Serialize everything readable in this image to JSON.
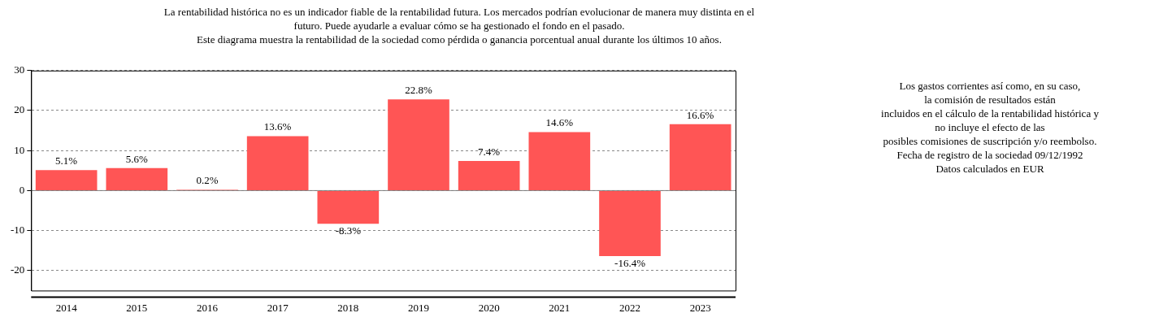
{
  "chart_data": {
    "type": "bar",
    "title": "La rentabilidad histórica no es un indicador fiable de la rentabilidad futura. Los mercados podrían evolucionar de manera muy distinta en el\nfuturo. Puede ayudarle a evaluar cómo se ha gestionado el fondo en el pasado.\nEste diagrama muestra la rentabilidad de la sociedad como pérdida o ganancia porcentual anual durante los últimos 10 años.",
    "categories": [
      "2014",
      "2015",
      "2016",
      "2017",
      "2018",
      "2019",
      "2020",
      "2021",
      "2022",
      "2023"
    ],
    "values": [
      5.1,
      5.6,
      0.2,
      13.6,
      -8.3,
      22.8,
      7.4,
      14.6,
      -16.4,
      16.6
    ],
    "value_labels": [
      "5.1%",
      "5.6%",
      "0.2%",
      "13.6%",
      "-8.3%",
      "22.8%",
      "7.4%",
      "14.6%",
      "-16.4%",
      "16.6%"
    ],
    "color": "#ff5555",
    "ylim": [
      -25,
      30
    ],
    "yticks": [
      -20,
      -10,
      0,
      10,
      20,
      30
    ],
    "grid": "y",
    "ref_lines": [
      {
        "axis": "y",
        "value": 0,
        "color": "#808080"
      }
    ],
    "annotations": [
      "Los gastos corrientes así como, en su caso,\nla comisión de resultados están\nincluidos en el cálculo de la rentabilidad histórica y\nno incluye el efecto de las\nposibles comisiones de suscripción y/o reembolso.\nFecha de registro de la sociedad 09/12/1992\nDatos calculados en EUR"
    ],
    "legend": false
  }
}
